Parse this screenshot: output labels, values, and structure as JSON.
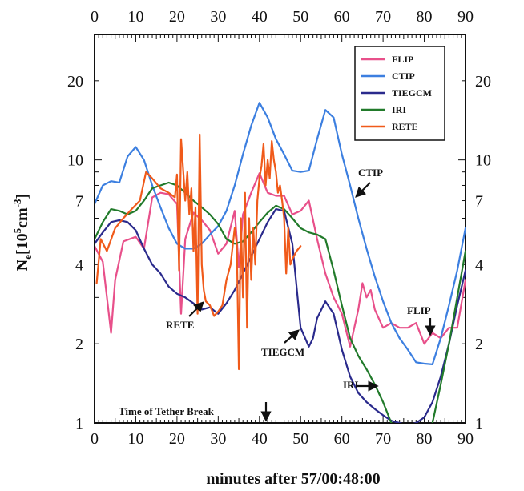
{
  "chart_data": {
    "type": "line",
    "xlabel": "minutes after 57/00:48:00",
    "ylabel_main": "N",
    "ylabel_sub": "e",
    "ylabel_unit": "[10",
    "ylabel_exp": "5",
    "ylabel_tail": "cm",
    "ylabel_exp2": "-3",
    "ylabel_end": "]",
    "y_scale": "log",
    "xlim": [
      0,
      90
    ],
    "ylim": [
      1,
      30
    ],
    "x_ticks": [
      "0",
      "10",
      "20",
      "30",
      "40",
      "50",
      "60",
      "70",
      "80",
      "90"
    ],
    "y_ticks_left": [
      "1",
      "2",
      "4",
      "7",
      "10",
      "20"
    ],
    "y_ticks_right": [
      "1",
      "2",
      "4",
      "7",
      "10",
      "20"
    ],
    "y_tick_values": [
      1,
      2,
      4,
      7,
      10,
      20
    ],
    "legend_placement": "top-right",
    "series": [
      {
        "name": "FLIP",
        "color": "#e8508a",
        "x": [
          0,
          2,
          4,
          5,
          7,
          10,
          12,
          14,
          16,
          18,
          20,
          21,
          22,
          24,
          26,
          28,
          30,
          32,
          34,
          35,
          36,
          38,
          40,
          42,
          44,
          46,
          48,
          50,
          52,
          54,
          56,
          58,
          60,
          62,
          64,
          65,
          66,
          67,
          68,
          70,
          72,
          74,
          76,
          78,
          80,
          82,
          84,
          86,
          88,
          90
        ],
        "y": [
          4.7,
          4.1,
          2.2,
          3.5,
          4.9,
          5.1,
          4.6,
          7.2,
          7.5,
          7.4,
          6.8,
          2.6,
          5.0,
          6.3,
          5.9,
          5.4,
          4.4,
          4.8,
          6.4,
          3.9,
          6.2,
          7.5,
          8.9,
          7.5,
          7.3,
          7.3,
          6.2,
          6.4,
          7.0,
          5.0,
          3.7,
          3.0,
          2.6,
          1.95,
          2.7,
          3.4,
          3.0,
          3.2,
          2.7,
          2.3,
          2.4,
          2.3,
          2.3,
          2.4,
          2.0,
          2.2,
          2.1,
          2.3,
          2.3,
          3.5
        ]
      },
      {
        "name": "CTIP",
        "color": "#3c7fe0",
        "x": [
          0,
          2,
          4,
          6,
          8,
          10,
          12,
          14,
          16,
          18,
          20,
          22,
          24,
          26,
          28,
          30,
          32,
          34,
          36,
          38,
          40,
          42,
          44,
          46,
          48,
          50,
          52,
          54,
          56,
          58,
          60,
          62,
          64,
          66,
          68,
          70,
          72,
          74,
          76,
          78,
          80,
          82,
          84,
          86,
          88,
          90
        ],
        "y": [
          6.8,
          8.0,
          8.3,
          8.2,
          10.3,
          11.2,
          10.0,
          8.0,
          6.6,
          5.5,
          4.8,
          4.6,
          4.6,
          4.8,
          5.2,
          5.6,
          6.4,
          8.0,
          10.5,
          13.5,
          16.5,
          14.5,
          12.0,
          10.5,
          9.1,
          9.0,
          9.1,
          12.0,
          15.5,
          14.5,
          10.5,
          8.0,
          6.0,
          4.6,
          3.6,
          2.9,
          2.4,
          2.1,
          1.9,
          1.7,
          1.68,
          1.67,
          2.1,
          2.8,
          3.8,
          5.5
        ]
      },
      {
        "name": "TIEGCM",
        "color": "#2a2a8c",
        "x": [
          0,
          2,
          4,
          6,
          8,
          10,
          12,
          14,
          16,
          18,
          20,
          22,
          24,
          26,
          28,
          30,
          32,
          34,
          36,
          38,
          40,
          42,
          44,
          46,
          48,
          50,
          52,
          53,
          54,
          56,
          58,
          60,
          62,
          64,
          66,
          68,
          70,
          72,
          74,
          76,
          78,
          80,
          82,
          84,
          86,
          88,
          90
        ],
        "y": [
          4.8,
          5.3,
          5.8,
          5.9,
          5.8,
          5.4,
          4.6,
          4.0,
          3.7,
          3.3,
          3.1,
          3.0,
          2.85,
          2.7,
          2.75,
          2.6,
          2.85,
          3.2,
          3.7,
          4.3,
          5.0,
          5.8,
          6.5,
          6.4,
          4.8,
          2.3,
          1.95,
          2.1,
          2.5,
          2.9,
          2.6,
          1.9,
          1.5,
          1.3,
          1.2,
          1.13,
          1.07,
          1.02,
          1.0,
          0.98,
          1.0,
          1.05,
          1.2,
          1.5,
          2.0,
          2.8,
          3.8
        ]
      },
      {
        "name": "IRI",
        "color": "#217a2a",
        "x": [
          0,
          2,
          4,
          6,
          8,
          10,
          12,
          14,
          16,
          18,
          20,
          22,
          24,
          26,
          28,
          30,
          32,
          34,
          36,
          38,
          40,
          42,
          44,
          46,
          48,
          50,
          52,
          54,
          56,
          58,
          60,
          62,
          64,
          66,
          68,
          70,
          72,
          74,
          76,
          78,
          80,
          82,
          84,
          86,
          88,
          90
        ],
        "y": [
          5.0,
          5.8,
          6.5,
          6.4,
          6.2,
          6.4,
          7.0,
          7.8,
          8.0,
          8.2,
          8.0,
          7.5,
          7.0,
          6.6,
          6.2,
          5.7,
          5.0,
          4.8,
          4.9,
          5.3,
          5.8,
          6.3,
          6.7,
          6.5,
          6.0,
          5.5,
          5.3,
          5.2,
          5.0,
          3.8,
          2.8,
          2.1,
          1.8,
          1.6,
          1.4,
          1.2,
          1.0,
          0.85,
          0.75,
          0.7,
          0.8,
          1.0,
          1.4,
          2.0,
          3.0,
          4.5
        ]
      },
      {
        "name": "RETE",
        "color": "#f05a1a",
        "x": [
          0.5,
          1.5,
          3,
          5,
          7,
          9,
          11,
          12.5,
          14,
          16,
          18,
          19.5,
          20,
          20.5,
          21,
          22,
          22.5,
          23,
          23.5,
          24,
          24.5,
          25,
          25.5,
          26,
          26.5,
          27,
          28,
          29,
          30,
          31,
          32,
          33,
          34,
          34.5,
          35,
          35.5,
          36,
          36.5,
          37,
          37.5,
          38,
          38.5,
          39,
          39.5,
          40,
          40.5,
          41,
          41.5,
          42,
          42.5,
          43,
          43.5,
          44,
          44.5,
          45,
          45.5,
          46,
          46.5,
          47,
          47.5,
          48,
          49,
          50
        ],
        "y": [
          3.4,
          5.0,
          4.5,
          5.5,
          6.0,
          6.5,
          7.0,
          9.0,
          8.5,
          7.8,
          7.5,
          7.2,
          8.8,
          3.8,
          12.0,
          7.0,
          9.0,
          6.2,
          7.8,
          4.5,
          6.6,
          2.6,
          12.5,
          4.0,
          3.2,
          2.9,
          2.8,
          2.55,
          2.65,
          2.8,
          3.5,
          4.0,
          5.5,
          4.8,
          1.6,
          6.0,
          3.0,
          7.5,
          2.3,
          6.0,
          3.5,
          5.5,
          4.0,
          7.0,
          8.5,
          9.5,
          11.5,
          8.0,
          10.0,
          8.5,
          11.8,
          10.0,
          9.0,
          7.5,
          8.0,
          7.0,
          6.0,
          3.7,
          5.5,
          4.0,
          4.2,
          4.5,
          4.7
        ]
      }
    ],
    "annotations": [
      {
        "text": "CTIP",
        "x_data": 56,
        "y_data": 8.0
      },
      {
        "text": "RETE",
        "x_data": 22,
        "y_data": 2.55
      },
      {
        "text": "TIEGCM",
        "x_data": 50,
        "y_data": 1.85
      },
      {
        "text": "IRI",
        "x_data": 62,
        "y_data": 1.45
      },
      {
        "text": "FLIP",
        "x_data": 79,
        "y_data": 2.65
      },
      {
        "text": "Time of Tether Break",
        "x_data": 20,
        "y_data": 1.06
      }
    ]
  }
}
